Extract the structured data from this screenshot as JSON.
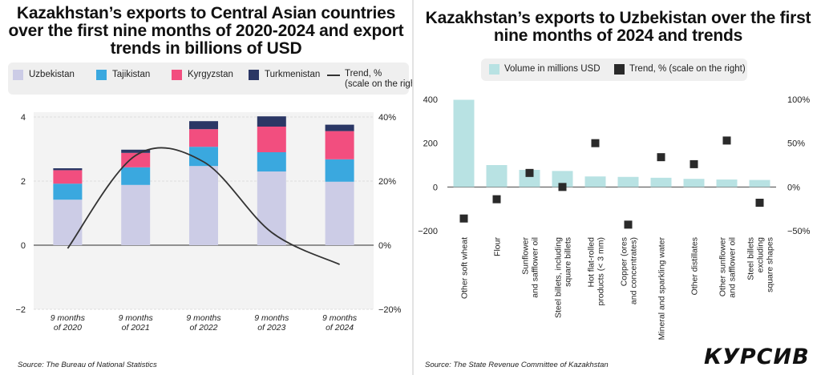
{
  "left": {
    "title": "Kazakhstan’s exports to Central Asian countries over the first nine months of 2020-2024 and export trends in billions of USD",
    "source": "Source: The Bureau of National Statistics",
    "legend": {
      "uzbekistan": "Uzbekistan",
      "tajikistan": "Tajikistan",
      "kyrgyzstan": "Kyrgyzstan",
      "turkmenistan": "Turkmenistan",
      "trend": "Trend, %\n(scale on the right)"
    }
  },
  "right": {
    "title": "Kazakhstan’s exports to Uzbekistan over the first nine months of 2024 and trends",
    "source": "Source: The State Revenue Committee of Kazakhstan",
    "legend": {
      "volume": "Volume in millions USD",
      "trend": "Trend, % (scale on the right)"
    },
    "logo": "КУРСИВ"
  },
  "chart_data": [
    {
      "type": "bar",
      "stacked": true,
      "categories": [
        "9 months\nof 2020",
        "9 months\nof 2021",
        "9 months\nof 2022",
        "9 months\nof 2023",
        "9 months\nof 2024"
      ],
      "series": [
        {
          "name": "Uzbekistan",
          "values": [
            1.42,
            1.88,
            2.47,
            2.3,
            1.98
          ],
          "color": "#cccce6"
        },
        {
          "name": "Tajikistan",
          "values": [
            0.5,
            0.55,
            0.6,
            0.6,
            0.7
          ],
          "color": "#3aa8df"
        },
        {
          "name": "Kyrgyzstan",
          "values": [
            0.42,
            0.45,
            0.55,
            0.8,
            0.88
          ],
          "color": "#f24e7f"
        },
        {
          "name": "Turkmenistan",
          "values": [
            0.06,
            0.1,
            0.25,
            0.32,
            0.2
          ],
          "color": "#2b3765"
        }
      ],
      "trend": {
        "name": "Trend, %",
        "values": [
          -1,
          28,
          26,
          4,
          -6
        ],
        "color": "#333333"
      },
      "ylim": [
        -2,
        4
      ],
      "yticks": [
        -2,
        0,
        2,
        4
      ],
      "y2lim": [
        -20,
        40
      ],
      "y2ticks": [
        "−20%",
        "0%",
        "20%",
        "40%"
      ],
      "legend_position": "top"
    },
    {
      "type": "bar",
      "categories": [
        "Other soft wheat",
        "Flour",
        "Sunflower\nand safflower oil",
        "Steel billets, including\nsquare billets",
        "Hot flat-rolled\nproducts (< 3 mm)",
        "Copper (ores\nand concentrates)",
        "Mineral and sparkling water",
        "Other distillates",
        "Other sunflower\nand safflower oil",
        "Steel billets\nexcluding\nsquare shapes"
      ],
      "series": [
        {
          "name": "Volume in millions USD",
          "values": [
            398,
            100,
            78,
            73,
            48,
            46,
            42,
            37,
            34,
            32
          ],
          "color": "#b8e2e3"
        }
      ],
      "trend": {
        "name": "Trend, % (scale on the right)",
        "values": [
          -36,
          -14,
          16,
          0,
          50,
          -43,
          34,
          26,
          53,
          -18
        ],
        "color": "#2a2a2a"
      },
      "ylim": [
        -200,
        400
      ],
      "yticks": [
        -200,
        0,
        200,
        400
      ],
      "y2lim": [
        -50,
        100
      ],
      "y2ticks": [
        "−50%",
        "0%",
        "50%",
        "100%"
      ],
      "legend_position": "top"
    }
  ]
}
